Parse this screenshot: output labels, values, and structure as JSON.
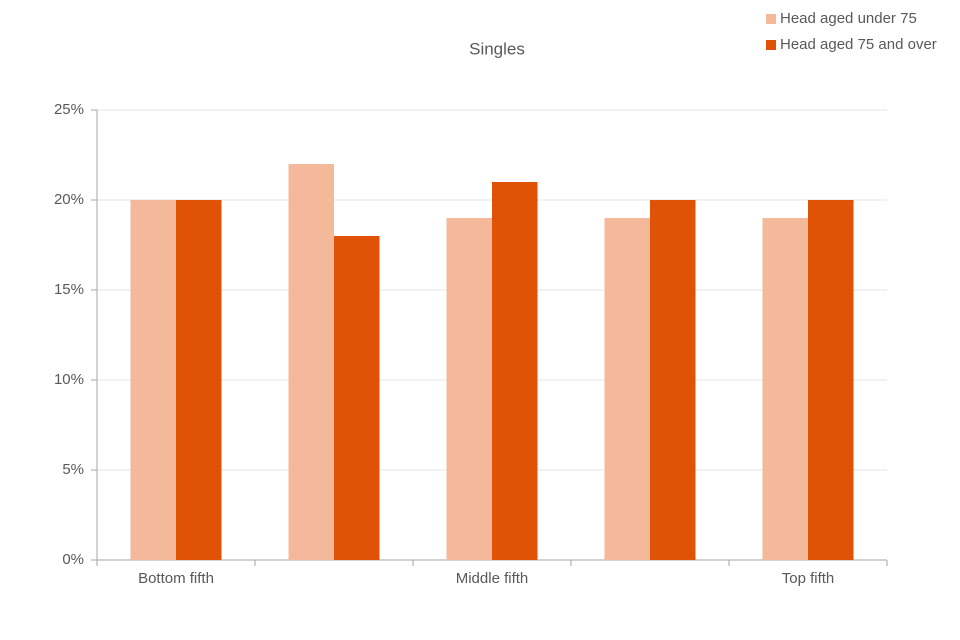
{
  "chart_data": {
    "type": "bar",
    "title": "Singles",
    "categories": [
      "Bottom fifth",
      null,
      "Middle fifth",
      null,
      "Top fifth"
    ],
    "series": [
      {
        "name": "Head aged under 75",
        "color": "#f4b99a",
        "values": [
          20,
          22,
          19,
          19,
          19
        ]
      },
      {
        "name": "Head aged 75 and over",
        "color": "#e05206",
        "values": [
          20,
          18,
          21,
          20,
          20
        ]
      }
    ],
    "ylim": [
      0,
      25
    ],
    "yticks": [
      {
        "value": 0,
        "label": "0%"
      },
      {
        "value": 5,
        "label": "5%"
      },
      {
        "value": 10,
        "label": "10%"
      },
      {
        "value": 15,
        "label": "15%"
      },
      {
        "value": 20,
        "label": "20%"
      },
      {
        "value": 25,
        "label": "25%"
      }
    ],
    "grid": true,
    "legend": "top-right"
  }
}
